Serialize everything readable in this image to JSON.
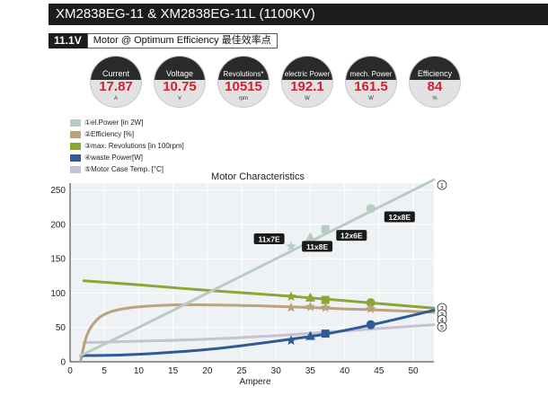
{
  "header": {
    "title": "XM2838EG-11 & XM2838EG-11L (1100KV)"
  },
  "subheader": {
    "voltage": "11.1V",
    "label": "Motor @ Optimum Efficiency  最佳效率点"
  },
  "gauges": [
    {
      "label": "Current",
      "value": "17.87",
      "unit": "A"
    },
    {
      "label": "Voltage",
      "value": "10.75",
      "unit": "V"
    },
    {
      "label": "Revolutions*",
      "value": "10515",
      "unit": "rpm"
    },
    {
      "label": "electric Power",
      "value": "192.1",
      "unit": "W"
    },
    {
      "label": "mech. Power",
      "value": "161.5",
      "unit": "W"
    },
    {
      "label": "Efficiency",
      "value": "84",
      "unit": "%"
    }
  ],
  "legend": [
    {
      "label": "①el.Power [in 2W]",
      "color": "#b7ccc4"
    },
    {
      "label": "②Efficiency [%]",
      "color": "#b9a27c"
    },
    {
      "label": "③max. Revolutions [in 100rpm]",
      "color": "#8ba634"
    },
    {
      "label": "④waste Power[W]",
      "color": "#2f5a96"
    },
    {
      "label": "⑤Motor Case Temp. [°C]",
      "color": "#c4c3d3"
    }
  ],
  "chart_data": {
    "type": "line",
    "title": "Motor Characteristics",
    "xlabel": "Ampere",
    "ylabel": "",
    "xlim": [
      0,
      53
    ],
    "ylim": [
      0,
      260
    ],
    "xticks": [
      0,
      5,
      10,
      15,
      20,
      25,
      30,
      35,
      40,
      45,
      50
    ],
    "yticks": [
      0,
      50,
      100,
      150,
      200,
      250
    ],
    "grid": true,
    "series": [
      {
        "name": "①el.Power [in 2W]",
        "color": "#b7ccc4",
        "marker": "circle",
        "end_label": "①",
        "x": [
          1.5,
          10,
          20,
          30,
          40,
          53
        ],
        "y": [
          9,
          50,
          100,
          150,
          200,
          265
        ]
      },
      {
        "name": "②Efficiency [%]",
        "color": "#b9a27c",
        "marker": "star",
        "end_label": "②",
        "x": [
          1.5,
          2.5,
          4,
          6,
          9,
          13,
          18,
          25,
          32,
          40,
          46,
          53
        ],
        "y": [
          0,
          40,
          62,
          73,
          79,
          82,
          83,
          82,
          80,
          77,
          75,
          72
        ]
      },
      {
        "name": "③max. Revolutions [in 100rpm]",
        "color": "#8ba634",
        "marker": "circle",
        "end_label": "③",
        "x": [
          2,
          10,
          20,
          30,
          40,
          53
        ],
        "y": [
          118,
          112,
          104,
          97,
          89,
          78
        ]
      },
      {
        "name": "④waste Power[W]",
        "color": "#2f5a96",
        "marker": "circle",
        "end_label": "④",
        "x": [
          1.5,
          8,
          15,
          22,
          30,
          37,
          44,
          53
        ],
        "y": [
          9,
          10,
          14,
          20,
          30,
          40,
          54,
          75
        ]
      },
      {
        "name": "⑤Motor Case Temp. [°C]",
        "color": "#c4c3d3",
        "marker": "none",
        "end_label": "⑤",
        "x": [
          2,
          10,
          20,
          30,
          40,
          53
        ],
        "y": [
          28,
          30,
          33,
          38,
          45,
          54
        ]
      }
    ],
    "propellers": [
      {
        "label": "11x7E",
        "current": 32.2,
        "el_power": 168,
        "efficiency": 79,
        "revolutions": 95,
        "waste": 31,
        "label_at": [
          29,
          179
        ]
      },
      {
        "label": "11x8E",
        "current": 35,
        "el_power": 181,
        "efficiency": 80,
        "revolutions": 93,
        "waste": 37,
        "label_at": [
          36,
          168
        ]
      },
      {
        "label": "12x6E",
        "current": 37.2,
        "el_power": 193,
        "efficiency": 79,
        "revolutions": 90,
        "waste": 41,
        "label_at": [
          41,
          184
        ]
      },
      {
        "label": "12x8E",
        "current": 43.8,
        "el_power": 223,
        "efficiency": 77,
        "revolutions": 86,
        "waste": 54,
        "label_at": [
          48,
          211
        ]
      }
    ]
  }
}
